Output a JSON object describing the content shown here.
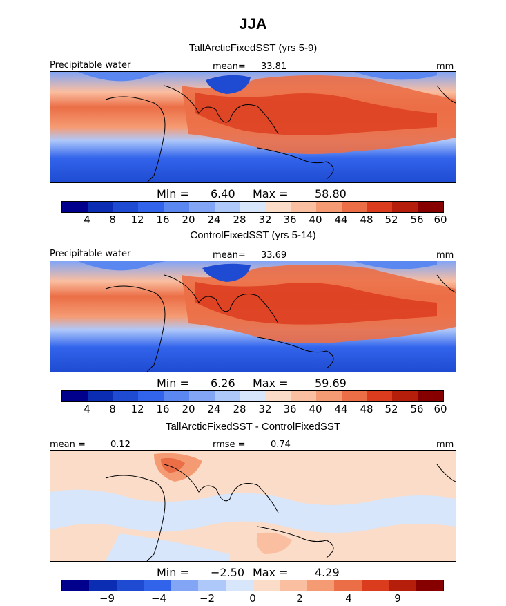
{
  "season": "JJA",
  "panels": [
    {
      "title": "TallArcticFixedSST (yrs 5-9)",
      "variable": "Precipitable water",
      "mean_label": "mean=",
      "mean_value": "33.81",
      "units": "mm",
      "min_label": "Min =",
      "min_value": "6.40",
      "max_label": "Max =",
      "max_value": "58.80",
      "colorbar_ticks": [
        "4",
        "8",
        "12",
        "16",
        "20",
        "24",
        "28",
        "32",
        "36",
        "40",
        "44",
        "48",
        "52",
        "56",
        "60"
      ]
    },
    {
      "title": "ControlFixedSST (yrs 5-14)",
      "variable": "Precipitable water",
      "mean_label": "mean=",
      "mean_value": "33.69",
      "units": "mm",
      "min_label": "Min =",
      "min_value": "6.26",
      "max_label": "Max =",
      "max_value": "59.69",
      "colorbar_ticks": [
        "4",
        "8",
        "12",
        "16",
        "20",
        "24",
        "28",
        "32",
        "36",
        "40",
        "44",
        "48",
        "52",
        "56",
        "60"
      ]
    },
    {
      "title": "TallArcticFixedSST - ControlFixedSST",
      "mean_label": "mean =",
      "mean_value": "0.12",
      "rmse_label": "rmse =",
      "rmse_value": "0.74",
      "units": "mm",
      "min_label": "Min =",
      "min_value": "−2.50",
      "max_label": "Max =",
      "max_value": "4.29",
      "colorbar_ticks": [
        "−9",
        "−4",
        "−2",
        "0",
        "2",
        "4",
        "9"
      ]
    }
  ],
  "colors": {
    "field_scale": [
      "#00008c",
      "#0a2db4",
      "#1e4bd2",
      "#3264eb",
      "#5a87f0",
      "#82a5f5",
      "#afc8fa",
      "#d7e6fa",
      "#fadcc8",
      "#fabea0",
      "#f59b73",
      "#eb6e46",
      "#dc3c1e",
      "#b41e0a",
      "#870000"
    ],
    "diff_scale": [
      "#00008c",
      "#0a2db4",
      "#1e4bd2",
      "#3264eb",
      "#82a5f5",
      "#afc8fa",
      "#d7e6fa",
      "#fadcc8",
      "#fabea0",
      "#f59b73",
      "#eb6e46",
      "#dc3c1e",
      "#b41e0a",
      "#870000"
    ],
    "coast": "#000000"
  }
}
